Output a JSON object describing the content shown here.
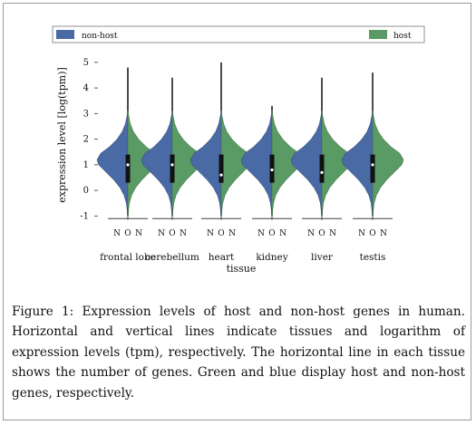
{
  "figure_caption": "Figure 1: Expression levels of host and non-host genes in human. Horizontal and vertical lines indicate tissues and logarithm of expression levels (tpm), respectively. The horizontal line in each tissue shows the number of genes. Green and blue display host and non-host genes, respectively.",
  "chart_data": {
    "type": "violin",
    "title": "",
    "xlabel": "tissue",
    "ylabel": "expression level [log(tpm)]",
    "ylim": [
      -1.2,
      5.1
    ],
    "yticks": [
      -1,
      0,
      1,
      2,
      3,
      4,
      5
    ],
    "legend": {
      "placement": "top",
      "entries": [
        {
          "label": "non-host",
          "color": "#4a6aa5"
        },
        {
          "label": "host",
          "color": "#5a9a64"
        }
      ]
    },
    "categories": [
      "frontal lobe",
      "cerebellum",
      "heart",
      "kidney",
      "liver",
      "testis"
    ],
    "pair_labels": [
      "N",
      "O",
      "N"
    ],
    "colors": {
      "non_host": "#4a6aa5",
      "host": "#5a9a64"
    },
    "series": [
      {
        "name": "non-host",
        "max": [
          4.8,
          4.4,
          5.0,
          3.3,
          4.4,
          4.6
        ],
        "min": [
          -1.0,
          -1.0,
          -1.0,
          -1.0,
          -1.0,
          -1.0
        ]
      },
      {
        "name": "host",
        "max": [
          3.0,
          3.0,
          3.0,
          3.0,
          5.0,
          3.0
        ],
        "min": [
          -1.0,
          -1.0,
          -1.0,
          -1.0,
          -1.0,
          -1.0
        ]
      }
    ],
    "median": [
      1.0,
      1.0,
      0.6,
      0.8,
      0.7,
      1.0
    ]
  }
}
